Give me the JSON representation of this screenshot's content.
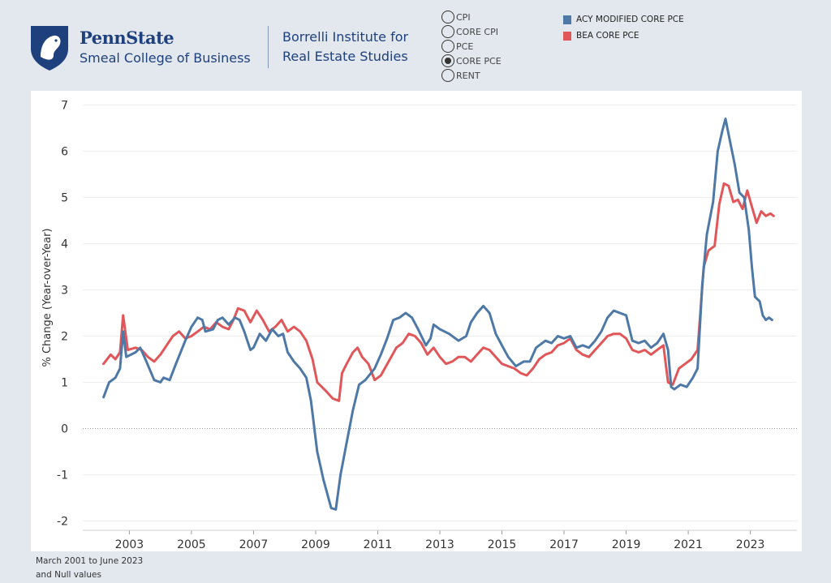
{
  "header": {
    "brand_name": "PennState",
    "college": "Smeal College of Business",
    "institute_line1": "Borrelli Institute for",
    "institute_line2": "Real Estate Studies"
  },
  "selector": {
    "options": [
      "CPI",
      "CORE CPI",
      "PCE",
      "CORE PCE",
      "RENT"
    ],
    "selected": "CORE PCE"
  },
  "legend": [
    {
      "label": "ACY MODIFIED CORE PCE",
      "color": "#4e79a7"
    },
    {
      "label": "BEA CORE PCE",
      "color": "#e15759"
    }
  ],
  "footnote": {
    "line1": "March 2001 to June 2023",
    "line2": "and Null values"
  },
  "chart_data": {
    "type": "line",
    "title": "",
    "xlabel": "",
    "ylabel": "% Change (Year-over-Year)",
    "xlim": [
      2001.5,
      2024.5
    ],
    "ylim": [
      -2.2,
      7.2
    ],
    "x_ticks": [
      "2003",
      "2005",
      "2007",
      "2009",
      "2011",
      "2013",
      "2015",
      "2017",
      "2019",
      "2021",
      "2023"
    ],
    "y_ticks": [
      "-2",
      "-1",
      "0",
      "1",
      "2",
      "3",
      "4",
      "5",
      "6",
      "7"
    ],
    "zero_line": true,
    "series": [
      {
        "name": "ACY MODIFIED CORE PCE",
        "color": "#4e79a7",
        "points": [
          [
            2002.17,
            0.68
          ],
          [
            2002.35,
            1.0
          ],
          [
            2002.55,
            1.1
          ],
          [
            2002.7,
            1.3
          ],
          [
            2002.8,
            2.1
          ],
          [
            2002.9,
            1.55
          ],
          [
            2003.2,
            1.65
          ],
          [
            2003.35,
            1.75
          ],
          [
            2003.55,
            1.45
          ],
          [
            2003.8,
            1.05
          ],
          [
            2004.0,
            1.0
          ],
          [
            2004.1,
            1.1
          ],
          [
            2004.3,
            1.05
          ],
          [
            2004.5,
            1.4
          ],
          [
            2004.8,
            1.9
          ],
          [
            2005.0,
            2.2
          ],
          [
            2005.2,
            2.4
          ],
          [
            2005.35,
            2.35
          ],
          [
            2005.45,
            2.1
          ],
          [
            2005.7,
            2.15
          ],
          [
            2005.85,
            2.35
          ],
          [
            2006.0,
            2.4
          ],
          [
            2006.2,
            2.25
          ],
          [
            2006.4,
            2.4
          ],
          [
            2006.55,
            2.35
          ],
          [
            2006.7,
            2.1
          ],
          [
            2006.9,
            1.7
          ],
          [
            2007.0,
            1.75
          ],
          [
            2007.2,
            2.05
          ],
          [
            2007.4,
            1.9
          ],
          [
            2007.6,
            2.15
          ],
          [
            2007.8,
            2.0
          ],
          [
            2007.95,
            2.05
          ],
          [
            2008.1,
            1.65
          ],
          [
            2008.3,
            1.45
          ],
          [
            2008.5,
            1.3
          ],
          [
            2008.7,
            1.1
          ],
          [
            2008.85,
            0.6
          ],
          [
            2009.05,
            -0.5
          ],
          [
            2009.25,
            -1.1
          ],
          [
            2009.5,
            -1.72
          ],
          [
            2009.65,
            -1.75
          ],
          [
            2009.8,
            -1.0
          ],
          [
            2010.0,
            -0.3
          ],
          [
            2010.2,
            0.4
          ],
          [
            2010.4,
            0.95
          ],
          [
            2010.6,
            1.05
          ],
          [
            2010.9,
            1.3
          ],
          [
            2011.1,
            1.6
          ],
          [
            2011.3,
            1.95
          ],
          [
            2011.5,
            2.35
          ],
          [
            2011.7,
            2.4
          ],
          [
            2011.9,
            2.5
          ],
          [
            2012.1,
            2.4
          ],
          [
            2012.3,
            2.15
          ],
          [
            2012.55,
            1.8
          ],
          [
            2012.7,
            1.95
          ],
          [
            2012.8,
            2.25
          ],
          [
            2013.0,
            2.15
          ],
          [
            2013.3,
            2.05
          ],
          [
            2013.6,
            1.9
          ],
          [
            2013.85,
            2.0
          ],
          [
            2014.0,
            2.3
          ],
          [
            2014.2,
            2.5
          ],
          [
            2014.4,
            2.65
          ],
          [
            2014.6,
            2.5
          ],
          [
            2014.8,
            2.05
          ],
          [
            2015.0,
            1.8
          ],
          [
            2015.2,
            1.55
          ],
          [
            2015.45,
            1.35
          ],
          [
            2015.7,
            1.45
          ],
          [
            2015.9,
            1.45
          ],
          [
            2016.1,
            1.75
          ],
          [
            2016.4,
            1.9
          ],
          [
            2016.6,
            1.85
          ],
          [
            2016.8,
            2.0
          ],
          [
            2017.0,
            1.95
          ],
          [
            2017.2,
            2.0
          ],
          [
            2017.4,
            1.75
          ],
          [
            2017.6,
            1.8
          ],
          [
            2017.8,
            1.75
          ],
          [
            2018.0,
            1.9
          ],
          [
            2018.2,
            2.1
          ],
          [
            2018.4,
            2.4
          ],
          [
            2018.6,
            2.55
          ],
          [
            2018.8,
            2.5
          ],
          [
            2019.0,
            2.45
          ],
          [
            2019.2,
            1.9
          ],
          [
            2019.4,
            1.85
          ],
          [
            2019.6,
            1.9
          ],
          [
            2019.8,
            1.75
          ],
          [
            2020.0,
            1.85
          ],
          [
            2020.2,
            2.05
          ],
          [
            2020.35,
            1.7
          ],
          [
            2020.45,
            0.9
          ],
          [
            2020.55,
            0.85
          ],
          [
            2020.75,
            0.95
          ],
          [
            2020.95,
            0.9
          ],
          [
            2021.15,
            1.1
          ],
          [
            2021.3,
            1.3
          ],
          [
            2021.45,
            3.1
          ],
          [
            2021.6,
            4.2
          ],
          [
            2021.8,
            4.9
          ],
          [
            2021.95,
            6.0
          ],
          [
            2022.1,
            6.45
          ],
          [
            2022.2,
            6.7
          ],
          [
            2022.35,
            6.2
          ],
          [
            2022.5,
            5.7
          ],
          [
            2022.65,
            5.1
          ],
          [
            2022.8,
            5.0
          ],
          [
            2022.95,
            4.3
          ],
          [
            2023.05,
            3.5
          ],
          [
            2023.15,
            2.85
          ],
          [
            2023.3,
            2.75
          ],
          [
            2023.4,
            2.45
          ],
          [
            2023.5,
            2.35
          ],
          [
            2023.6,
            2.4
          ],
          [
            2023.7,
            2.35
          ]
        ]
      },
      {
        "name": "BEA CORE PCE",
        "color": "#e15759",
        "points": [
          [
            2002.17,
            1.4
          ],
          [
            2002.4,
            1.6
          ],
          [
            2002.55,
            1.5
          ],
          [
            2002.7,
            1.65
          ],
          [
            2002.8,
            2.45
          ],
          [
            2002.95,
            1.7
          ],
          [
            2003.2,
            1.75
          ],
          [
            2003.4,
            1.7
          ],
          [
            2003.6,
            1.55
          ],
          [
            2003.8,
            1.45
          ],
          [
            2004.0,
            1.6
          ],
          [
            2004.2,
            1.8
          ],
          [
            2004.4,
            2.0
          ],
          [
            2004.6,
            2.1
          ],
          [
            2004.8,
            1.95
          ],
          [
            2005.0,
            2.0
          ],
          [
            2005.2,
            2.1
          ],
          [
            2005.4,
            2.2
          ],
          [
            2005.6,
            2.15
          ],
          [
            2005.8,
            2.3
          ],
          [
            2006.0,
            2.2
          ],
          [
            2006.2,
            2.15
          ],
          [
            2006.35,
            2.35
          ],
          [
            2006.5,
            2.6
          ],
          [
            2006.7,
            2.55
          ],
          [
            2006.9,
            2.3
          ],
          [
            2007.1,
            2.55
          ],
          [
            2007.3,
            2.35
          ],
          [
            2007.5,
            2.1
          ],
          [
            2007.7,
            2.2
          ],
          [
            2007.9,
            2.35
          ],
          [
            2008.1,
            2.1
          ],
          [
            2008.3,
            2.2
          ],
          [
            2008.5,
            2.1
          ],
          [
            2008.7,
            1.9
          ],
          [
            2008.9,
            1.5
          ],
          [
            2009.05,
            1.0
          ],
          [
            2009.2,
            0.9
          ],
          [
            2009.35,
            0.8
          ],
          [
            2009.55,
            0.65
          ],
          [
            2009.75,
            0.6
          ],
          [
            2009.85,
            1.2
          ],
          [
            2010.0,
            1.4
          ],
          [
            2010.2,
            1.65
          ],
          [
            2010.35,
            1.75
          ],
          [
            2010.5,
            1.55
          ],
          [
            2010.7,
            1.4
          ],
          [
            2010.9,
            1.05
          ],
          [
            2011.1,
            1.15
          ],
          [
            2011.35,
            1.45
          ],
          [
            2011.6,
            1.75
          ],
          [
            2011.8,
            1.85
          ],
          [
            2012.0,
            2.05
          ],
          [
            2012.2,
            2.0
          ],
          [
            2012.4,
            1.85
          ],
          [
            2012.6,
            1.6
          ],
          [
            2012.8,
            1.75
          ],
          [
            2013.0,
            1.55
          ],
          [
            2013.2,
            1.4
          ],
          [
            2013.4,
            1.45
          ],
          [
            2013.6,
            1.55
          ],
          [
            2013.8,
            1.55
          ],
          [
            2014.0,
            1.45
          ],
          [
            2014.2,
            1.6
          ],
          [
            2014.4,
            1.75
          ],
          [
            2014.6,
            1.7
          ],
          [
            2014.8,
            1.55
          ],
          [
            2015.0,
            1.4
          ],
          [
            2015.2,
            1.35
          ],
          [
            2015.4,
            1.3
          ],
          [
            2015.6,
            1.2
          ],
          [
            2015.8,
            1.15
          ],
          [
            2016.0,
            1.3
          ],
          [
            2016.2,
            1.5
          ],
          [
            2016.4,
            1.6
          ],
          [
            2016.6,
            1.65
          ],
          [
            2016.8,
            1.8
          ],
          [
            2017.0,
            1.85
          ],
          [
            2017.2,
            1.95
          ],
          [
            2017.4,
            1.7
          ],
          [
            2017.6,
            1.6
          ],
          [
            2017.8,
            1.55
          ],
          [
            2018.0,
            1.7
          ],
          [
            2018.2,
            1.85
          ],
          [
            2018.4,
            2.0
          ],
          [
            2018.6,
            2.05
          ],
          [
            2018.8,
            2.05
          ],
          [
            2019.0,
            1.95
          ],
          [
            2019.2,
            1.7
          ],
          [
            2019.4,
            1.65
          ],
          [
            2019.6,
            1.7
          ],
          [
            2019.8,
            1.6
          ],
          [
            2020.0,
            1.7
          ],
          [
            2020.2,
            1.8
          ],
          [
            2020.35,
            1.0
          ],
          [
            2020.5,
            0.95
          ],
          [
            2020.7,
            1.3
          ],
          [
            2020.9,
            1.4
          ],
          [
            2021.1,
            1.5
          ],
          [
            2021.3,
            1.7
          ],
          [
            2021.5,
            3.5
          ],
          [
            2021.65,
            3.85
          ],
          [
            2021.85,
            3.95
          ],
          [
            2022.0,
            4.85
          ],
          [
            2022.15,
            5.3
          ],
          [
            2022.3,
            5.25
          ],
          [
            2022.45,
            4.9
          ],
          [
            2022.6,
            4.95
          ],
          [
            2022.75,
            4.75
          ],
          [
            2022.9,
            5.15
          ],
          [
            2023.05,
            4.8
          ],
          [
            2023.2,
            4.45
          ],
          [
            2023.35,
            4.7
          ],
          [
            2023.5,
            4.6
          ],
          [
            2023.65,
            4.65
          ],
          [
            2023.75,
            4.6
          ]
        ]
      }
    ]
  }
}
